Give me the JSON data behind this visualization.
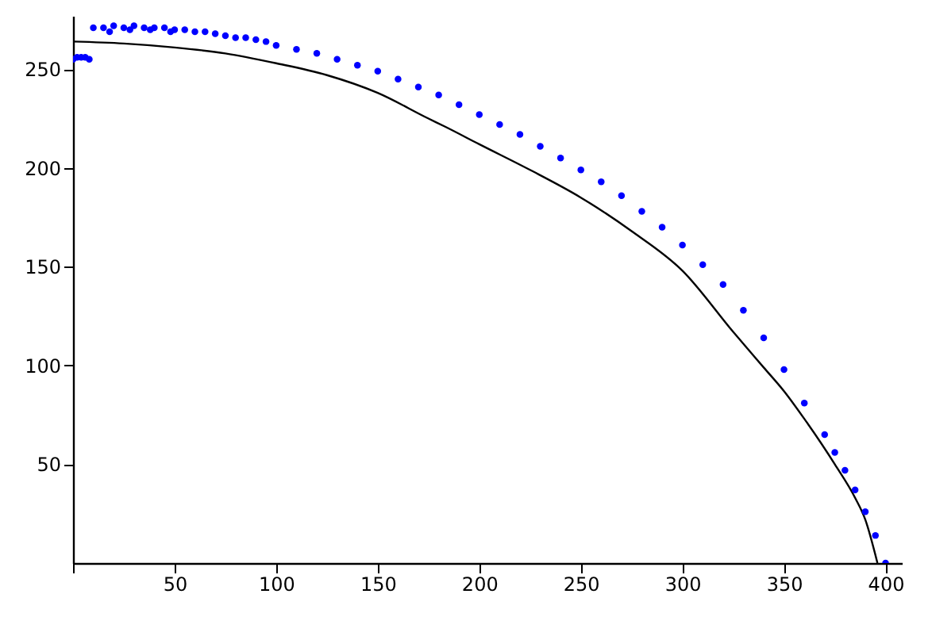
{
  "chart_data": {
    "type": "scatter",
    "xlim": [
      0,
      408
    ],
    "ylim": [
      0,
      277
    ],
    "xticks": [
      {
        "value": 0,
        "label": null
      },
      50,
      100,
      150,
      200,
      250,
      300,
      350,
      400
    ],
    "yticks": [
      50,
      100,
      150,
      200,
      250
    ],
    "grid": false,
    "series": [
      {
        "type": "line",
        "color": "#000000",
        "marker": "none",
        "line_style": "solid",
        "x": [
          0,
          25,
          50,
          75,
          100,
          125,
          150,
          175,
          183,
          200,
          225,
          250,
          275,
          300,
          325,
          340,
          350,
          360,
          375,
          385,
          390,
          396
        ],
        "values": [
          264,
          263,
          261,
          258,
          253,
          247,
          238,
          225,
          221,
          212,
          199,
          185,
          168,
          148,
          117,
          99,
          87,
          73,
          50,
          33,
          22,
          0
        ]
      },
      {
        "color": "#0000ff",
        "marker": "circle",
        "x": [
          0,
          2,
          4,
          6,
          8,
          10,
          15,
          18,
          20,
          25,
          28,
          30,
          35,
          38,
          40,
          45,
          48,
          50,
          55,
          60,
          65,
          70,
          75,
          80,
          85,
          90,
          95,
          100,
          110,
          120,
          130,
          140,
          150,
          160,
          170,
          180,
          190,
          200,
          210,
          220,
          230,
          240,
          250,
          260,
          270,
          280,
          290,
          300,
          310,
          320,
          330,
          340,
          350,
          360,
          370,
          375,
          380,
          385,
          390,
          395,
          400
        ],
        "values": [
          255,
          256,
          256,
          256,
          255,
          271,
          271,
          269,
          272,
          271,
          270,
          272,
          271,
          270,
          271,
          271,
          269,
          270,
          270,
          269,
          269,
          268,
          267,
          266,
          266,
          265,
          264,
          262,
          260,
          258,
          255,
          252,
          249,
          245,
          241,
          237,
          232,
          227,
          222,
          217,
          211,
          205,
          199,
          193,
          186,
          178,
          170,
          161,
          151,
          141,
          128,
          114,
          98,
          81,
          65,
          56,
          47,
          37,
          26,
          14,
          0
        ]
      }
    ]
  }
}
